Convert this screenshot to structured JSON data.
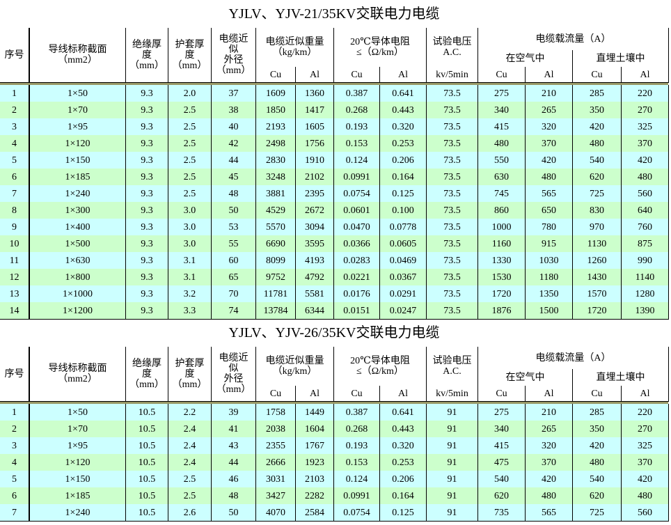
{
  "tables": [
    {
      "title": "YJLV、YJV-21/35KV交联电力电缆",
      "header": {
        "no": "序号",
        "section": "导线标称截面\n（mm2）",
        "insulation": "绝缘厚\n度\n（mm）",
        "sheath": "护套厚\n度\n（mm）",
        "diameter": "电缆近\n似\n外径\n（mm）",
        "weight": "电缆近似重量\n（kg/km）",
        "resistance": "20℃导体电阻\n≤（Ω/km）",
        "voltage": "试验电压\nA.C.",
        "current": "电缆载流量（A）",
        "air": "在空气中",
        "soil": "直埋土壤中",
        "sub": [
          "Cu",
          "Al",
          "Cu",
          "Al",
          "kv/5min",
          "Cu",
          "Al",
          "Cu",
          "Al"
        ]
      },
      "rows": [
        [
          "1",
          "1×50",
          "9.3",
          "2.0",
          "37",
          "1609",
          "1360",
          "0.387",
          "0.641",
          "73.5",
          "275",
          "210",
          "285",
          "220"
        ],
        [
          "2",
          "1×70",
          "9.3",
          "2.5",
          "38",
          "1850",
          "1417",
          "0.268",
          "0.443",
          "73.5",
          "340",
          "265",
          "350",
          "270"
        ],
        [
          "3",
          "1×95",
          "9.3",
          "2.5",
          "40",
          "2193",
          "1605",
          "0.193",
          "0.320",
          "73.5",
          "415",
          "320",
          "420",
          "325"
        ],
        [
          "4",
          "1×120",
          "9.3",
          "2.5",
          "42",
          "2498",
          "1756",
          "0.153",
          "0.253",
          "73.5",
          "480",
          "370",
          "480",
          "370"
        ],
        [
          "5",
          "1×150",
          "9.3",
          "2.5",
          "44",
          "2830",
          "1910",
          "0.124",
          "0.206",
          "73.5",
          "550",
          "420",
          "540",
          "420"
        ],
        [
          "6",
          "1×185",
          "9.3",
          "2.5",
          "45",
          "3248",
          "2102",
          "0.0991",
          "0.164",
          "73.5",
          "630",
          "480",
          "620",
          "480"
        ],
        [
          "7",
          "1×240",
          "9.3",
          "2.5",
          "48",
          "3881",
          "2395",
          "0.0754",
          "0.125",
          "73.5",
          "745",
          "565",
          "725",
          "560"
        ],
        [
          "8",
          "1×300",
          "9.3",
          "3.0",
          "50",
          "4529",
          "2672",
          "0.0601",
          "0.100",
          "73.5",
          "860",
          "650",
          "830",
          "640"
        ],
        [
          "9",
          "1×400",
          "9.3",
          "3.0",
          "53",
          "5570",
          "3094",
          "0.0470",
          "0.0778",
          "73.5",
          "1000",
          "780",
          "970",
          "760"
        ],
        [
          "10",
          "1×500",
          "9.3",
          "3.0",
          "55",
          "6690",
          "3595",
          "0.0366",
          "0.0605",
          "73.5",
          "1160",
          "915",
          "1130",
          "875"
        ],
        [
          "11",
          "1×630",
          "9.3",
          "3.1",
          "60",
          "8099",
          "4193",
          "0.0283",
          "0.0469",
          "73.5",
          "1330",
          "1030",
          "1260",
          "990"
        ],
        [
          "12",
          "1×800",
          "9.3",
          "3.1",
          "65",
          "9752",
          "4792",
          "0.0221",
          "0.0367",
          "73.5",
          "1530",
          "1180",
          "1430",
          "1140"
        ],
        [
          "13",
          "1×1000",
          "9.3",
          "3.2",
          "70",
          "11781",
          "5581",
          "0.0176",
          "0.0291",
          "73.5",
          "1720",
          "1350",
          "1570",
          "1280"
        ],
        [
          "14",
          "1×1200",
          "9.3",
          "3.3",
          "74",
          "13784",
          "6344",
          "0.0151",
          "0.0247",
          "73.5",
          "1876",
          "1500",
          "1720",
          "1390"
        ]
      ]
    },
    {
      "title": "YJLV、YJV-26/35KV交联电力电缆",
      "header": {
        "no": "序号",
        "section": "导线标称截面\n（mm2）",
        "insulation": "绝缘厚\n度\n（mm）",
        "sheath": "护套厚\n度\n（mm）",
        "diameter": "电缆近\n似\n外径\n（mm）",
        "weight": "电缆近似重量\n（kg/km）",
        "resistance": "20℃导体电阻\n≤（Ω/km）",
        "voltage": "试验电压\nA.C.",
        "current": "电缆载流量（A）",
        "air": "在空气中",
        "soil": "直埋土壤中",
        "sub": [
          "Cu",
          "Al",
          "Cu",
          "Al",
          "kv/5min",
          "Cu",
          "Al",
          "Cu",
          "Al"
        ]
      },
      "rows": [
        [
          "1",
          "1×50",
          "10.5",
          "2.2",
          "39",
          "1758",
          "1449",
          "0.387",
          "0.641",
          "91",
          "275",
          "210",
          "285",
          "220"
        ],
        [
          "2",
          "1×70",
          "10.5",
          "2.4",
          "41",
          "2038",
          "1604",
          "0.268",
          "0.443",
          "91",
          "340",
          "265",
          "350",
          "270"
        ],
        [
          "3",
          "1×95",
          "10.5",
          "2.4",
          "43",
          "2355",
          "1767",
          "0.193",
          "0.320",
          "91",
          "415",
          "320",
          "420",
          "325"
        ],
        [
          "4",
          "1×120",
          "10.5",
          "2.4",
          "44",
          "2666",
          "1923",
          "0.153",
          "0.253",
          "91",
          "475",
          "370",
          "480",
          "370"
        ],
        [
          "5",
          "1×150",
          "10.5",
          "2.5",
          "46",
          "3031",
          "2103",
          "0.124",
          "0.206",
          "91",
          "540",
          "420",
          "540",
          "420"
        ],
        [
          "6",
          "1×185",
          "10.5",
          "2.5",
          "48",
          "3427",
          "2282",
          "0.0991",
          "0.164",
          "91",
          "620",
          "480",
          "620",
          "480"
        ],
        [
          "7",
          "1×240",
          "10.5",
          "2.6",
          "50",
          "4070",
          "2584",
          "0.0754",
          "0.125",
          "91",
          "735",
          "565",
          "725",
          "560"
        ]
      ]
    }
  ]
}
